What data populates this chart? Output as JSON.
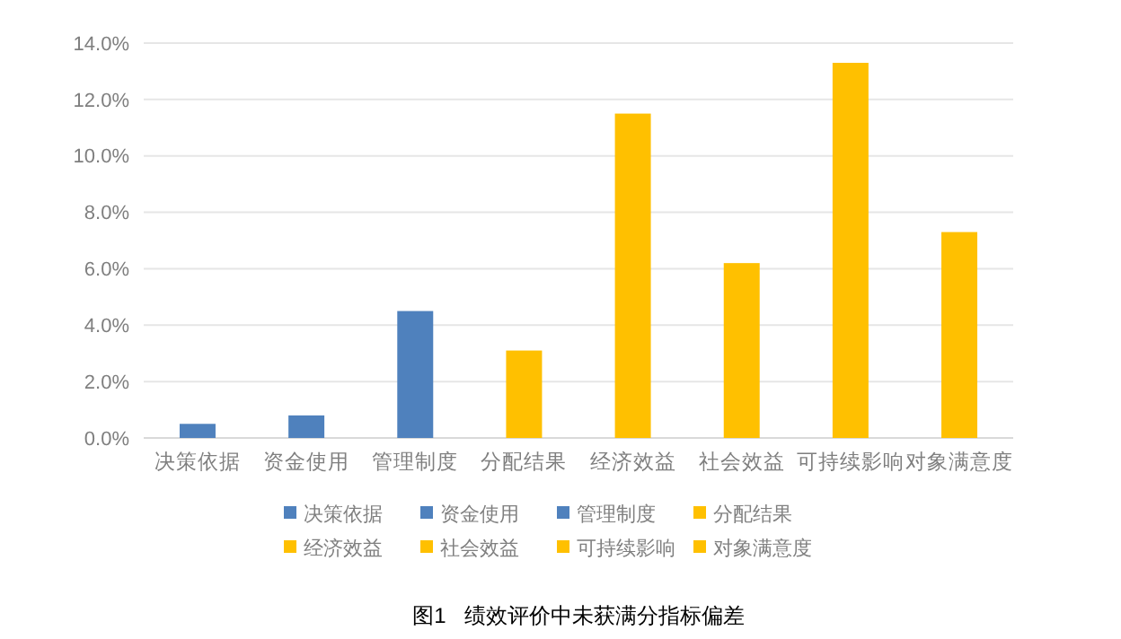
{
  "chart_data": {
    "type": "bar",
    "stacked": true,
    "categories": [
      "决策依据",
      "资金使用",
      "管理制度",
      "分配结果",
      "经济效益",
      "社会效益",
      "可持续影响",
      "对象满意度"
    ],
    "series": [
      {
        "name": "决策依据",
        "color": "#4f81bd",
        "values": [
          0.5,
          null,
          null,
          null,
          null,
          null,
          null,
          null
        ]
      },
      {
        "name": "资金使用",
        "color": "#4f81bd",
        "values": [
          null,
          0.8,
          null,
          null,
          null,
          null,
          null,
          null
        ]
      },
      {
        "name": "管理制度",
        "color": "#4f81bd",
        "values": [
          null,
          null,
          4.5,
          null,
          null,
          null,
          null,
          null
        ]
      },
      {
        "name": "分配结果",
        "color": "#ffc000",
        "values": [
          null,
          null,
          null,
          3.1,
          null,
          null,
          null,
          null
        ]
      },
      {
        "name": "经济效益",
        "color": "#ffc000",
        "values": [
          null,
          null,
          null,
          null,
          11.5,
          null,
          null,
          null
        ]
      },
      {
        "name": "社会效益",
        "color": "#ffc000",
        "values": [
          null,
          null,
          null,
          null,
          null,
          6.2,
          null,
          null
        ]
      },
      {
        "name": "可持续影响",
        "color": "#ffc000",
        "values": [
          null,
          null,
          null,
          null,
          null,
          null,
          13.3,
          null
        ]
      },
      {
        "name": "对象满意度",
        "color": "#ffc000",
        "values": [
          null,
          null,
          null,
          null,
          null,
          null,
          null,
          7.3
        ]
      }
    ],
    "ylim": [
      0,
      14
    ],
    "yticks": [
      {
        "value": 0,
        "label": "0.0%"
      },
      {
        "value": 2,
        "label": "2.0%"
      },
      {
        "value": 4,
        "label": "4.0%"
      },
      {
        "value": 6,
        "label": "6.0%"
      },
      {
        "value": 8,
        "label": "8.0%"
      },
      {
        "value": 10,
        "label": "10.0%"
      },
      {
        "value": 12,
        "label": "12.0%"
      },
      {
        "value": 14,
        "label": "14.0%"
      }
    ],
    "grid": "y",
    "legend": "bottom",
    "annotations": [
      "图1   绩效评价中未获满分指标偏差"
    ]
  }
}
